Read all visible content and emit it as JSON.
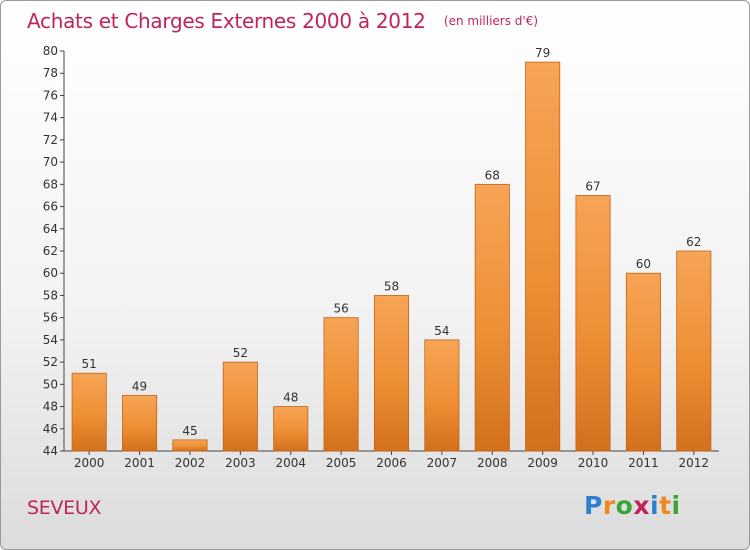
{
  "title": "Achats et Charges Externes 2000 à 2012",
  "unit": "(en milliers d'€)",
  "commune": "SEVEUX",
  "brand": {
    "letters": [
      "P",
      "r",
      "o",
      "x",
      "i",
      "t",
      "i"
    ],
    "colors": [
      "#2f7fd0",
      "#f08a1c",
      "#3aa63a",
      "#c0245a",
      "#2f7fd0",
      "#f08a1c",
      "#3aa63a"
    ]
  },
  "chart_data": {
    "type": "bar",
    "categories": [
      "2000",
      "2001",
      "2002",
      "2003",
      "2004",
      "2005",
      "2006",
      "2007",
      "2008",
      "2009",
      "2010",
      "2011",
      "2012"
    ],
    "values": [
      51,
      49,
      45,
      52,
      48,
      56,
      58,
      54,
      68,
      79,
      67,
      60,
      62
    ],
    "ylim": [
      44,
      80
    ],
    "yticks": [
      44,
      46,
      48,
      50,
      52,
      54,
      56,
      58,
      60,
      62,
      64,
      66,
      68,
      70,
      72,
      74,
      76,
      78,
      80
    ],
    "grid": false,
    "legend": "none",
    "bar_color": "#f0923a",
    "title": "Achats et Charges Externes 2000 à 2012",
    "xlabel": "",
    "ylabel": ""
  }
}
